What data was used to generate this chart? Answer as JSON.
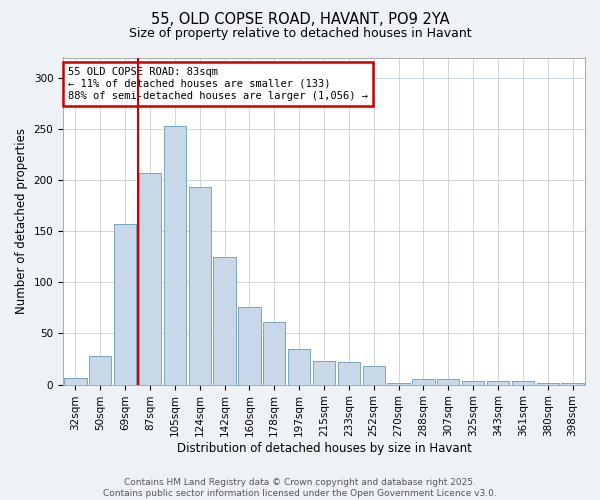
{
  "title": "55, OLD COPSE ROAD, HAVANT, PO9 2YA",
  "subtitle": "Size of property relative to detached houses in Havant",
  "xlabel": "Distribution of detached houses by size in Havant",
  "ylabel": "Number of detached properties",
  "bar_labels": [
    "32sqm",
    "50sqm",
    "69sqm",
    "87sqm",
    "105sqm",
    "124sqm",
    "142sqm",
    "160sqm",
    "178sqm",
    "197sqm",
    "215sqm",
    "233sqm",
    "252sqm",
    "270sqm",
    "288sqm",
    "307sqm",
    "325sqm",
    "343sqm",
    "361sqm",
    "380sqm",
    "398sqm"
  ],
  "bar_values": [
    6,
    28,
    157,
    207,
    253,
    193,
    125,
    76,
    61,
    35,
    23,
    22,
    18,
    2,
    5,
    5,
    4,
    4,
    4,
    2,
    2
  ],
  "bar_color": "#c8d8e8",
  "bar_edge_color": "#6a9ab8",
  "vline_x_index": 2.5,
  "vline_color": "#cc0000",
  "annotation_text": "55 OLD COPSE ROAD: 83sqm\n← 11% of detached houses are smaller (133)\n88% of semi-detached houses are larger (1,056) →",
  "annotation_box_color": "#ffffff",
  "annotation_box_edge": "#cc0000",
  "ylim": [
    0,
    320
  ],
  "yticks": [
    0,
    50,
    100,
    150,
    200,
    250,
    300
  ],
  "footnote": "Contains HM Land Registry data © Crown copyright and database right 2025.\nContains public sector information licensed under the Open Government Licence v3.0.",
  "bg_color": "#eef2f6",
  "plot_bg_color": "#ffffff"
}
